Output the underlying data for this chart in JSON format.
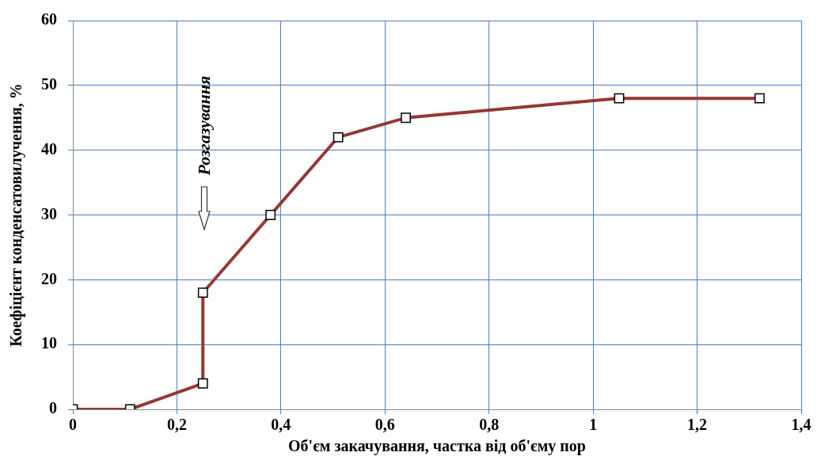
{
  "chart_data": {
    "type": "line",
    "xlabel": "Об'єм закачування, частка від об'єму пор",
    "ylabel": "Коефіцієнт конденсатовилучення, %",
    "x": [
      0,
      0.11,
      0.25,
      0.25,
      0.38,
      0.51,
      0.64,
      1.05,
      1.32
    ],
    "series": [
      {
        "color": "#953735",
        "values": [
          0,
          0,
          4,
          18,
          30,
          42,
          45,
          48,
          48
        ]
      }
    ],
    "xlim": [
      0,
      1.4
    ],
    "xticks": [
      0,
      {
        "value": 0.2,
        "label": "0,2"
      },
      {
        "value": 0.4,
        "label": "0,4"
      },
      {
        "value": 0.6,
        "label": "0,6"
      },
      {
        "value": 0.8,
        "label": "0,8"
      },
      1,
      {
        "value": 1.2,
        "label": "1,2"
      },
      {
        "value": 1.4,
        "label": "1,4"
      }
    ],
    "ylim": [
      0,
      60
    ],
    "yticks": [
      0,
      10,
      20,
      30,
      40,
      50,
      60
    ],
    "grid": true,
    "legend": false,
    "marker": "square",
    "line_style": "solid",
    "annotations": [
      "Розгазування"
    ]
  }
}
